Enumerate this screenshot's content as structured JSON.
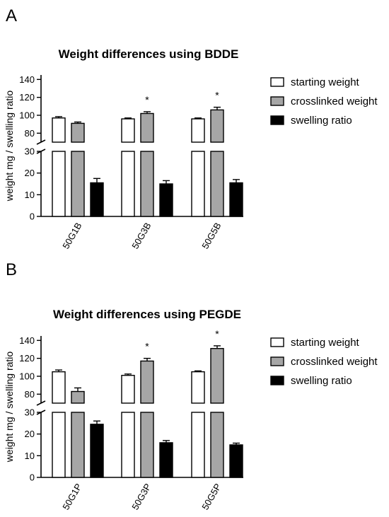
{
  "chart_data": [
    {
      "panel_label": "A",
      "type": "bar",
      "title": "Weight differences using BDDE",
      "ylabel": "weight mg / swelling ratio",
      "categories": [
        "50G1B",
        "50G3B",
        "50G5B"
      ],
      "series": [
        {
          "name": "starting weight",
          "values": [
            97,
            96,
            96
          ],
          "errors": [
            1.5,
            1,
            1
          ],
          "color": "#ffffff"
        },
        {
          "name": "crosslinked weight",
          "values": [
            91,
            102,
            106
          ],
          "errors": [
            1.5,
            2,
            3
          ],
          "color": "#a6a6a6"
        },
        {
          "name": "swelling ratio",
          "values": [
            15.5,
            15,
            15.5
          ],
          "errors": [
            2,
            1.5,
            1.5
          ],
          "color": "#000000"
        }
      ],
      "significance": [
        {
          "category": "50G3B",
          "series": "crosslinked weight",
          "mark": "*"
        },
        {
          "category": "50G5B",
          "series": "crosslinked weight",
          "mark": "*"
        }
      ],
      "y_axis_break": {
        "lower_range": [
          0,
          30
        ],
        "upper_range": [
          70,
          145
        ]
      },
      "lower_ticks": [
        0,
        10,
        20,
        30
      ],
      "upper_ticks": [
        80,
        100,
        120,
        140
      ],
      "grid": false,
      "legend_position": "right"
    },
    {
      "panel_label": "B",
      "type": "bar",
      "title": "Weight differences using PEGDE",
      "ylabel": "weight mg / swelling ratio",
      "categories": [
        "50G1P",
        "50G3P",
        "50G5P"
      ],
      "series": [
        {
          "name": "starting weight",
          "values": [
            105,
            101,
            105
          ],
          "errors": [
            2,
            1.5,
            1
          ],
          "color": "#ffffff"
        },
        {
          "name": "crosslinked weight",
          "values": [
            83,
            117,
            131
          ],
          "errors": [
            4,
            3,
            3
          ],
          "color": "#a6a6a6"
        },
        {
          "name": "swelling ratio",
          "values": [
            24.5,
            16,
            15
          ],
          "errors": [
            1.5,
            1,
            0.8
          ],
          "color": "#000000"
        }
      ],
      "significance": [
        {
          "category": "50G3P",
          "series": "crosslinked weight",
          "mark": "*"
        },
        {
          "category": "50G5P",
          "series": "crosslinked weight",
          "mark": "*"
        }
      ],
      "y_axis_break": {
        "lower_range": [
          0,
          30
        ],
        "upper_range": [
          70,
          145
        ]
      },
      "lower_ticks": [
        0,
        10,
        20,
        30
      ],
      "upper_ticks": [
        80,
        100,
        120,
        140
      ],
      "grid": false,
      "legend_position": "right"
    }
  ]
}
